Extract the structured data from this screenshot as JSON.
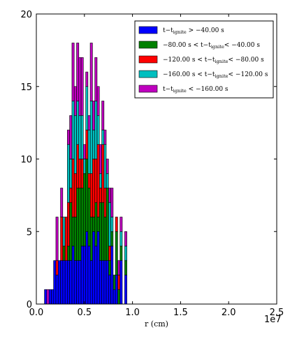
{
  "chart_data": {
    "type": "bar",
    "stacked": true,
    "title": "",
    "xlabel": "r  (cm)",
    "ylabel": "",
    "x_offset_label": "1e7",
    "xlim": [
      0,
      2.5
    ],
    "ylim": [
      0,
      20
    ],
    "x_ticks": [
      "0.0",
      "0.5",
      "1.0",
      "1.5",
      "2.0",
      "2.5"
    ],
    "y_ticks": [
      "0",
      "5",
      "10",
      "15",
      "20"
    ],
    "bin_width": 0.0238,
    "bin_centers": [
      0.096,
      0.144,
      0.191,
      0.239,
      0.287,
      0.334,
      0.382,
      0.43,
      0.477,
      0.525,
      0.572,
      0.62,
      0.668,
      0.715,
      0.763,
      0.811,
      0.858,
      0.906,
      0.953,
      0.12,
      0.168,
      0.215,
      0.263,
      0.311,
      0.358,
      0.406,
      0.453,
      0.501,
      0.549,
      0.596,
      0.644,
      0.692,
      0.739,
      0.787,
      0.834,
      0.882,
      0.93
    ],
    "series": [
      {
        "name": "t−t_ignite > −40.00 s",
        "color": "#0000ff",
        "values": [
          1,
          1,
          3,
          3,
          3,
          3,
          4,
          3,
          4,
          5,
          3,
          4,
          3,
          3,
          2,
          1,
          0,
          0,
          0,
          0,
          1,
          2,
          3,
          3,
          3,
          3,
          3,
          4,
          4,
          5,
          5,
          3,
          3,
          4,
          2,
          3,
          2
        ]
      },
      {
        "name": "−80.00 s < t−t_ignite < −40.00 s",
        "color": "#008000",
        "values": [
          0,
          0,
          0,
          0,
          1,
          1,
          2,
          5,
          4,
          5,
          3,
          3,
          4,
          3,
          1,
          1,
          1,
          0,
          0,
          0,
          0,
          0,
          0,
          0,
          4,
          3,
          5,
          5,
          4,
          1,
          1,
          4,
          5,
          1,
          3,
          1,
          1
        ]
      },
      {
        "name": "−120.00 s < t−t_ignite < −80.00 s",
        "color": "#ff0000",
        "values": [
          0,
          0,
          0,
          0,
          0,
          3,
          4,
          3,
          2,
          2,
          3,
          3,
          1,
          2,
          1,
          0,
          1,
          0,
          0,
          0,
          0,
          1,
          3,
          3,
          1,
          3,
          2,
          0,
          1,
          4,
          5,
          4,
          0,
          0,
          1,
          0,
          0
        ]
      },
      {
        "name": "−160.00 s < t−t_ignite < −120.00 s",
        "color": "#00bfbf",
        "values": [
          0,
          0,
          0,
          0,
          2,
          4,
          4,
          3,
          3,
          3,
          5,
          4,
          1,
          3,
          3,
          0,
          0,
          0,
          0,
          0,
          0,
          0,
          0,
          0,
          2,
          4,
          3,
          1,
          3,
          2,
          2,
          1,
          1,
          1,
          0,
          1,
          1
        ]
      },
      {
        "name": "t−t_ignite < −160.00 s",
        "color": "#bf00bf",
        "values": [
          0,
          0,
          0,
          0,
          0,
          1,
          4,
          4,
          4,
          1,
          4,
          3,
          2,
          1,
          1,
          0,
          1,
          0,
          0,
          1,
          0,
          3,
          2,
          0,
          3,
          2,
          4,
          1,
          1,
          2,
          2,
          2,
          1,
          2,
          0,
          1,
          1
        ]
      }
    ],
    "legend": {
      "position": "top-right",
      "entries": [
        {
          "color": "#0000ff",
          "parts": [
            {
              "t": "t−t"
            },
            {
              "t": "ignite",
              "sub": true
            },
            {
              "t": " > −40.00 s"
            }
          ]
        },
        {
          "color": "#008000",
          "parts": [
            {
              "t": "−80.00 s < t−t"
            },
            {
              "t": "ignite",
              "sub": true
            },
            {
              "t": "< −40.00 s"
            }
          ]
        },
        {
          "color": "#ff0000",
          "parts": [
            {
              "t": "−120.00 s < t−t"
            },
            {
              "t": "ignite",
              "sub": true
            },
            {
              "t": "< −80.00 s"
            }
          ]
        },
        {
          "color": "#00bfbf",
          "parts": [
            {
              "t": "−160.00 s < t−t"
            },
            {
              "t": "ignite",
              "sub": true
            },
            {
              "t": "< −120.00 s"
            }
          ]
        },
        {
          "color": "#bf00bf",
          "parts": [
            {
              "t": "t−t"
            },
            {
              "t": "ignite",
              "sub": true
            },
            {
              "t": " < −160.00 s"
            }
          ]
        }
      ]
    }
  }
}
